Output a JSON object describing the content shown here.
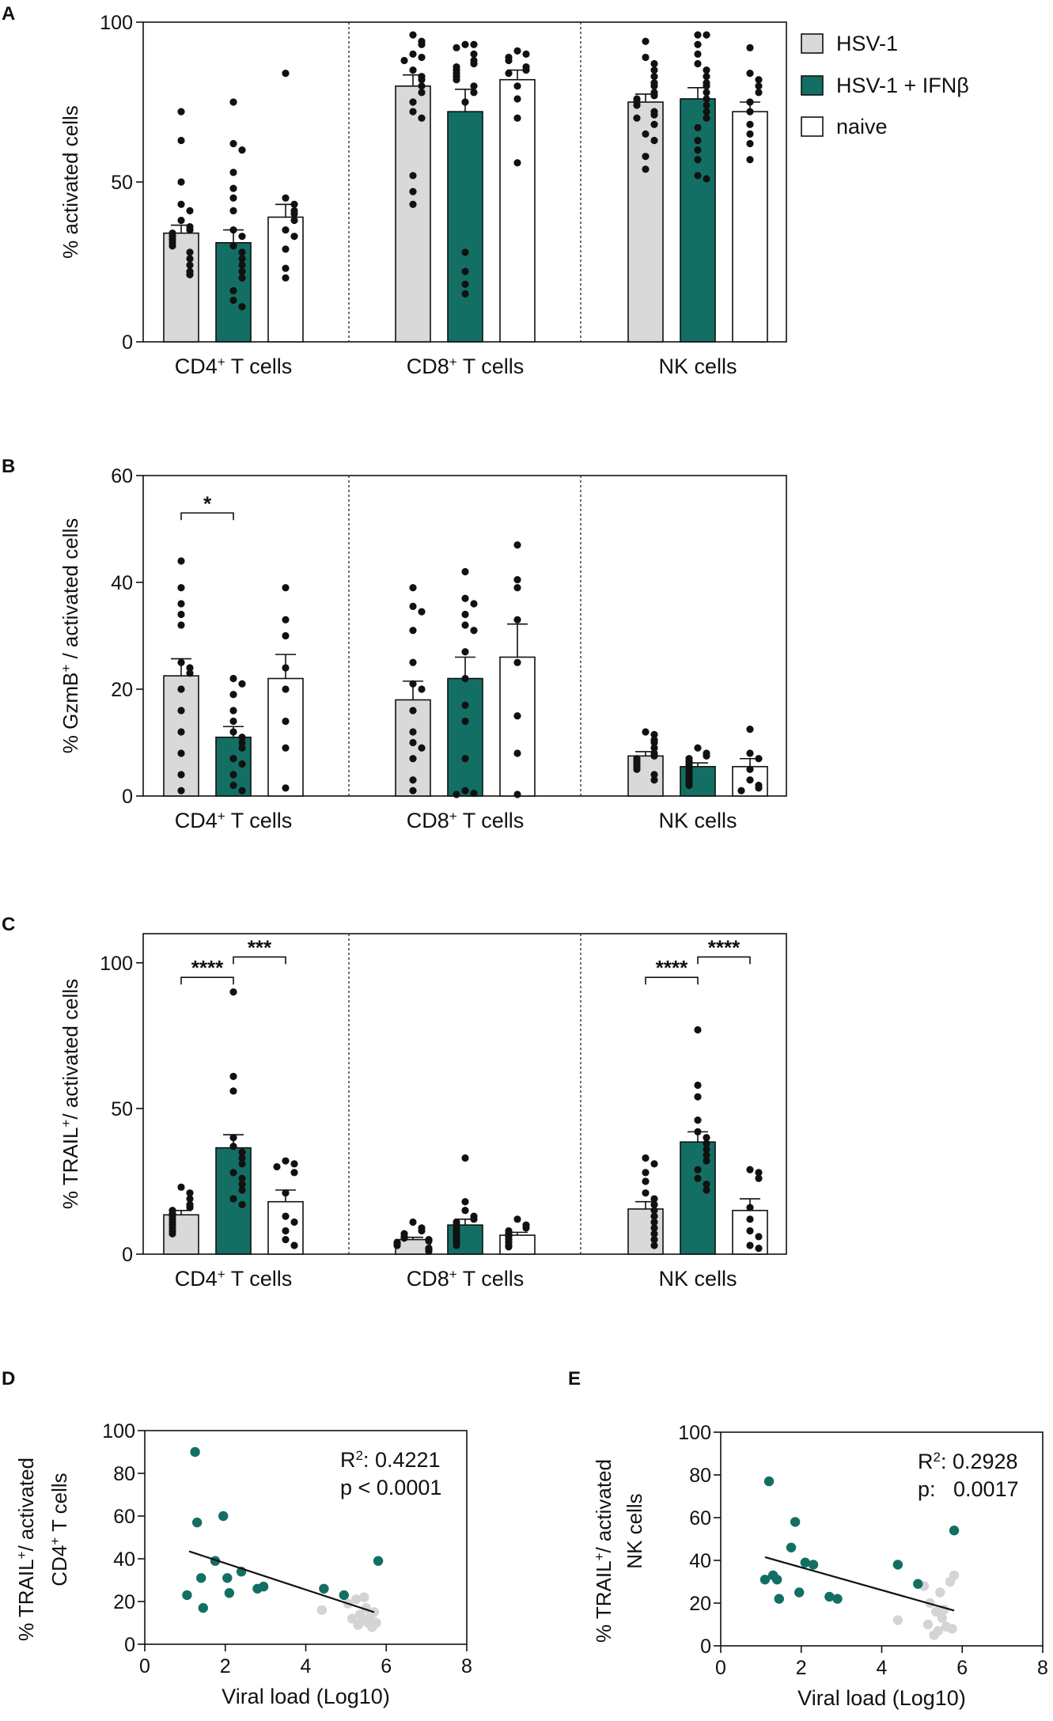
{
  "legend": {
    "items": [
      {
        "label": "HSV-1",
        "color": "#d9d9d9"
      },
      {
        "label": "HSV-1 + IFNβ",
        "color": "#136f63"
      },
      {
        "label": "naive",
        "color": "#ffffff"
      }
    ]
  },
  "colors": {
    "hsv1": "#d9d9d9",
    "ifnb": "#136f63",
    "naive": "#ffffff",
    "scatter_light": "#d4d4d4",
    "axis": "#111111"
  },
  "chart_data": [
    {
      "id": "A",
      "panel_letter": "A",
      "type": "bar",
      "ylabel": "% activated cells",
      "ylim": [
        0,
        100
      ],
      "yticks": [
        0,
        50,
        100
      ],
      "group_labels": [
        {
          "main": "CD4",
          "sup": "+",
          "rest": " T cells"
        },
        {
          "main": "CD8",
          "sup": "+",
          "rest": " T cells"
        },
        {
          "main": "NK cells",
          "sup": "",
          "rest": ""
        }
      ],
      "series_names": [
        "HSV-1",
        "HSV-1 + IFNβ",
        "naive"
      ],
      "bars": [
        [
          {
            "mean": 34,
            "sem": 2.5,
            "points": [
              72,
              63,
              50,
              43,
              41,
              38,
              36,
              35,
              34,
              33,
              32,
              31,
              30,
              28,
              26,
              24,
              22,
              21
            ]
          },
          {
            "mean": 31,
            "sem": 4,
            "points": [
              75,
              62,
              60,
              53,
              48,
              45,
              41,
              35,
              33,
              30,
              28,
              26,
              24,
              22,
              20,
              16,
              13,
              11
            ]
          },
          {
            "mean": 39,
            "sem": 4,
            "points": [
              84,
              45,
              43,
              41,
              40,
              38,
              35,
              33,
              29,
              23,
              20
            ]
          }
        ],
        [
          {
            "mean": 80,
            "sem": 3.5,
            "points": [
              96,
              94,
              93,
              90,
              89,
              88,
              85,
              83,
              82,
              80,
              78,
              75,
              72,
              70,
              52,
              47,
              43
            ]
          },
          {
            "mean": 72,
            "sem": 7,
            "points": [
              93,
              93,
              92,
              90,
              88,
              87,
              86,
              85,
              84,
              83,
              82,
              80,
              78,
              75,
              28,
              22,
              18,
              15
            ]
          },
          {
            "mean": 82,
            "sem": 3,
            "points": [
              91,
              90,
              89,
              88,
              86,
              85,
              84,
              80,
              76,
              70,
              56
            ]
          }
        ],
        [
          {
            "mean": 75,
            "sem": 2.5,
            "points": [
              94,
              89,
              87,
              85,
              83,
              81,
              80,
              78,
              77,
              76,
              75,
              74,
              72,
              71,
              70,
              68,
              65,
              63,
              58,
              54
            ]
          },
          {
            "mean": 76,
            "sem": 3.5,
            "points": [
              96,
              96,
              93,
              90,
              87,
              85,
              83,
              81,
              80,
              78,
              76,
              74,
              72,
              70,
              67,
              63,
              60,
              57,
              52,
              51
            ]
          },
          {
            "mean": 72,
            "sem": 3,
            "points": [
              92,
              84,
              82,
              80,
              78,
              75,
              72,
              68,
              65,
              62,
              57
            ]
          }
        ]
      ],
      "significance": []
    },
    {
      "id": "B",
      "panel_letter": "B",
      "type": "bar",
      "ylabel": "% GzmB",
      "ylabel_sup": "+",
      "ylabel_rest": " / activated cells",
      "ylim": [
        0,
        60
      ],
      "yticks": [
        0,
        20,
        40,
        60
      ],
      "group_labels": [
        {
          "main": "CD4",
          "sup": "+",
          "rest": " T cells"
        },
        {
          "main": "CD8",
          "sup": "+",
          "rest": " T cells"
        },
        {
          "main": "NK cells",
          "sup": "",
          "rest": ""
        }
      ],
      "series_names": [
        "HSV-1",
        "HSV-1 + IFNβ",
        "naive"
      ],
      "bars": [
        [
          {
            "mean": 22.5,
            "sem": 3.2,
            "points": [
              44,
              39,
              36,
              34,
              32,
              25,
              24,
              23,
              20,
              16,
              12,
              8,
              4,
              1
            ]
          },
          {
            "mean": 11,
            "sem": 2,
            "points": [
              22,
              21,
              19,
              16,
              14,
              12,
              11,
              10,
              9,
              7,
              6,
              4,
              2,
              1
            ]
          },
          {
            "mean": 22,
            "sem": 4.5,
            "points": [
              39,
              33,
              30,
              24,
              20,
              14,
              9,
              1.5
            ]
          }
        ],
        [
          {
            "mean": 18,
            "sem": 3.5,
            "points": [
              39,
              35.5,
              34.5,
              31,
              25,
              21,
              20,
              16,
              12,
              10,
              9,
              7,
              3,
              1
            ]
          },
          {
            "mean": 22,
            "sem": 4,
            "points": [
              42,
              37,
              36,
              34,
              32,
              31,
              27,
              22,
              17,
              14,
              7,
              1,
              0.5,
              0.3
            ]
          },
          {
            "mean": 26,
            "sem": 6.2,
            "points": [
              47,
              40.5,
              39,
              33,
              25,
              15,
              8,
              0.3
            ]
          }
        ],
        [
          {
            "mean": 7.5,
            "sem": 0.8,
            "points": [
              12,
              11.5,
              10.5,
              10,
              9,
              8,
              7.5,
              7,
              6.5,
              6,
              5.5,
              5,
              4,
              3
            ]
          },
          {
            "mean": 5.5,
            "sem": 0.7,
            "points": [
              9,
              8,
              7.5,
              7,
              6.5,
              6,
              5.5,
              5,
              4.5,
              4,
              3.5,
              3,
              2.5,
              2
            ]
          },
          {
            "mean": 5.5,
            "sem": 1.5,
            "points": [
              12.5,
              8,
              7,
              5,
              3,
              2,
              1.5,
              1
            ]
          }
        ]
      ],
      "significance": [
        {
          "group": 0,
          "from": 0,
          "to": 1,
          "label": "*",
          "y": 53
        }
      ]
    },
    {
      "id": "C",
      "panel_letter": "C",
      "type": "bar",
      "ylabel": "% TRAIL",
      "ylabel_sup": "+",
      "ylabel_rest": "/ activated cells",
      "ylim": [
        0,
        110
      ],
      "yticks": [
        0,
        50,
        100
      ],
      "group_labels": [
        {
          "main": "CD4",
          "sup": "+",
          "rest": " T cells"
        },
        {
          "main": "CD8",
          "sup": "+",
          "rest": " T cells"
        },
        {
          "main": "NK cells",
          "sup": "",
          "rest": ""
        }
      ],
      "series_names": [
        "HSV-1",
        "HSV-1 + IFNβ",
        "naive"
      ],
      "bars": [
        [
          {
            "mean": 13.5,
            "sem": 1.5,
            "points": [
              23,
              21,
              19,
              17,
              16,
              15,
              14,
              13,
              12,
              11,
              10,
              9,
              8,
              7
            ]
          },
          {
            "mean": 36.5,
            "sem": 4.5,
            "points": [
              90,
              61,
              56,
              40,
              37,
              35,
              33,
              31,
              28,
              26,
              24,
              22,
              19,
              17
            ]
          },
          {
            "mean": 18,
            "sem": 4,
            "points": [
              32,
              31,
              30,
              28,
              21,
              13,
              11,
              8,
              5,
              3
            ]
          }
        ],
        [
          {
            "mean": 5,
            "sem": 0.8,
            "points": [
              11,
              9,
              8,
              7,
              6,
              5.5,
              5,
              4.5,
              4,
              3.5,
              3,
              2,
              1.5,
              1
            ]
          },
          {
            "mean": 10,
            "sem": 2,
            "points": [
              33,
              18,
              15,
              13,
              12,
              11,
              10,
              9,
              8,
              7,
              6,
              5,
              4,
              3
            ]
          },
          {
            "mean": 6.5,
            "sem": 1,
            "points": [
              12,
              10,
              9,
              8,
              7,
              6,
              5,
              4,
              3,
              2.5
            ]
          }
        ],
        [
          {
            "mean": 15.5,
            "sem": 2.5,
            "points": [
              33,
              31,
              28,
              25,
              21,
              19,
              17,
              15,
              13,
              11,
              9,
              7,
              5,
              3
            ]
          },
          {
            "mean": 38.5,
            "sem": 3.5,
            "points": [
              77,
              58,
              54,
              46,
              42,
              40,
              38,
              36,
              34,
              32,
              29,
              26,
              24,
              22
            ]
          },
          {
            "mean": 15,
            "sem": 4,
            "points": [
              29,
              28,
              26,
              16,
              12,
              8,
              6,
              3,
              2
            ]
          }
        ]
      ],
      "significance": [
        {
          "group": 0,
          "from": 0,
          "to": 1,
          "label": "****",
          "y": 95
        },
        {
          "group": 0,
          "from": 1,
          "to": 2,
          "label": "***",
          "y": 102
        },
        {
          "group": 2,
          "from": 0,
          "to": 1,
          "label": "****",
          "y": 95
        },
        {
          "group": 2,
          "from": 1,
          "to": 2,
          "label": "****",
          "y": 102
        }
      ]
    },
    {
      "id": "D",
      "panel_letter": "D",
      "type": "scatter",
      "ylabel_line1_main": "% TRAIL",
      "ylabel_line1_sup": "+",
      "ylabel_line1_rest": "/ activated",
      "ylabel_line2_main": "CD4",
      "ylabel_line2_sup": "+",
      "ylabel_line2_rest": " T cells",
      "xlabel": "Viral load (Log10)",
      "xlim": [
        0,
        8
      ],
      "ylim": [
        0,
        100
      ],
      "xticks": [
        0,
        2,
        4,
        6,
        8
      ],
      "yticks": [
        0,
        20,
        40,
        60,
        80,
        100
      ],
      "r2_label": "R",
      "r2_sup": "2",
      "r2_value": ": 0.4221",
      "p_text": "p < 0.0001",
      "regression": {
        "x1": 1.1,
        "y1": 43.5,
        "x2": 5.7,
        "y2": 15
      },
      "series": [
        {
          "name": "HSV-1 + IFNβ",
          "color": "#136f63",
          "x": [
            1.05,
            1.25,
            1.3,
            1.4,
            1.45,
            1.75,
            1.95,
            2.05,
            2.1,
            2.4,
            2.8,
            2.95,
            4.45,
            4.95,
            5.8
          ],
          "y": [
            23,
            90,
            57,
            31,
            17,
            39,
            60,
            31,
            24,
            34,
            26,
            27,
            26,
            23,
            39
          ]
        },
        {
          "name": "HSV-1",
          "color": "#d4d4d4",
          "x": [
            4.4,
            5.05,
            5.15,
            5.25,
            5.3,
            5.35,
            5.4,
            5.45,
            5.5,
            5.55,
            5.6,
            5.65,
            5.7,
            5.75
          ],
          "y": [
            16,
            19,
            12,
            21,
            9,
            14,
            11,
            22,
            17,
            10,
            13,
            8,
            15,
            10
          ]
        }
      ]
    },
    {
      "id": "E",
      "panel_letter": "E",
      "type": "scatter",
      "ylabel_line1_main": "% TRAIL",
      "ylabel_line1_sup": "+",
      "ylabel_line1_rest": "/ activated",
      "ylabel_line2_main": "NK cells",
      "ylabel_line2_sup": "",
      "ylabel_line2_rest": "",
      "xlabel": "Viral load (Log10)",
      "xlim": [
        0,
        8
      ],
      "ylim": [
        0,
        100
      ],
      "xticks": [
        0,
        2,
        4,
        6,
        8
      ],
      "yticks": [
        0,
        20,
        40,
        60,
        80,
        100
      ],
      "r2_label": "R",
      "r2_sup": "2",
      "r2_value": ": 0.2928",
      "p_text": "p:   0.0017",
      "regression": {
        "x1": 1.1,
        "y1": 41.5,
        "x2": 5.8,
        "y2": 16.5
      },
      "series": [
        {
          "name": "HSV-1 + IFNβ",
          "color": "#136f63",
          "x": [
            1.1,
            1.2,
            1.3,
            1.4,
            1.45,
            1.75,
            1.85,
            1.95,
            2.1,
            2.3,
            2.7,
            2.9,
            4.4,
            4.9,
            5.8
          ],
          "y": [
            31,
            77,
            33,
            31,
            22,
            46,
            58,
            25,
            39,
            38,
            23,
            22,
            38,
            29,
            54
          ]
        },
        {
          "name": "HSV-1",
          "color": "#d4d4d4",
          "x": [
            4.4,
            5.05,
            5.15,
            5.2,
            5.3,
            5.35,
            5.4,
            5.45,
            5.5,
            5.55,
            5.6,
            5.7,
            5.75,
            5.8
          ],
          "y": [
            12,
            28,
            10,
            20,
            5,
            16,
            7,
            25,
            13,
            17,
            9,
            30,
            8,
            33
          ]
        }
      ]
    }
  ]
}
